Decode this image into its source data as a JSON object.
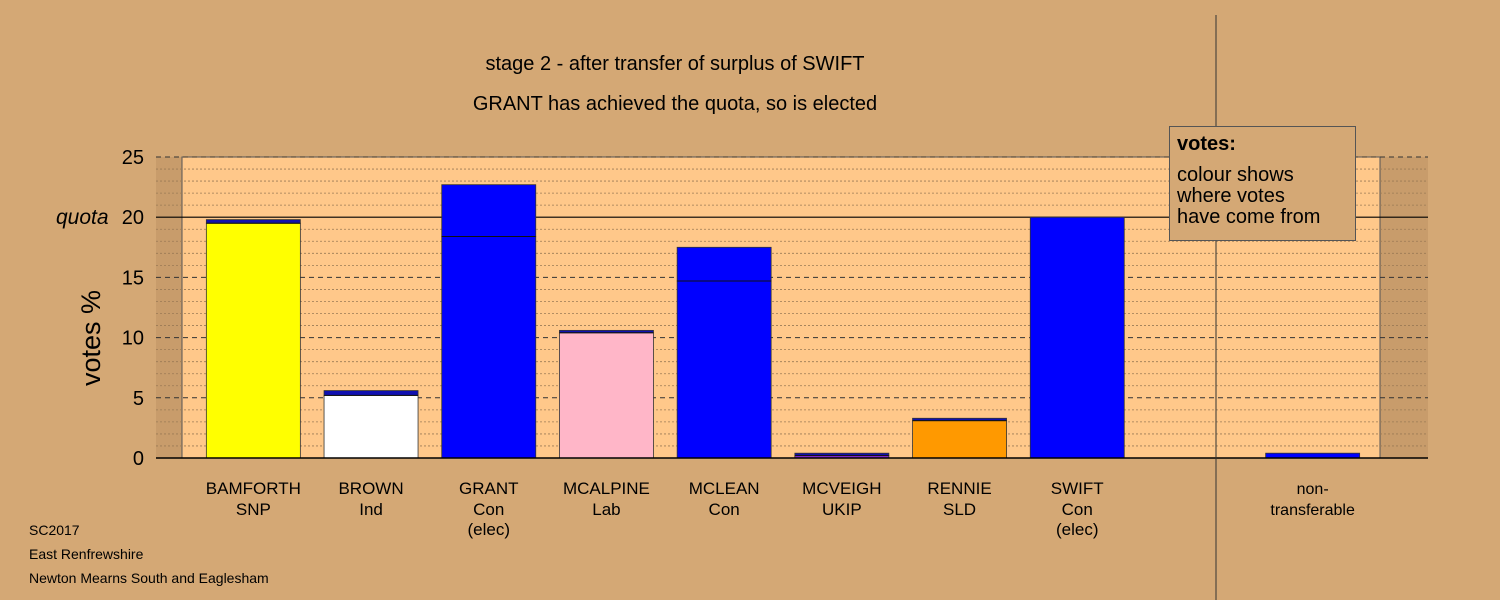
{
  "chart_data": {
    "type": "bar",
    "title": "stage 2 - after transfer of surplus of SWIFT",
    "subtitle": "GRANT has achieved the quota, so is elected",
    "ylabel": "votes %",
    "ylim": [
      0,
      25
    ],
    "yticks": [
      "0",
      "5",
      "10",
      "15",
      "20",
      "25"
    ],
    "quota": 20,
    "quota_label": "quota",
    "grid": true,
    "categories": [
      {
        "name": "BAMFORTH",
        "party": "SNP",
        "status": ""
      },
      {
        "name": "BROWN",
        "party": "Ind",
        "status": ""
      },
      {
        "name": "GRANT",
        "party": "Con",
        "status": "(elec)"
      },
      {
        "name": "MCALPINE",
        "party": "Lab",
        "status": ""
      },
      {
        "name": "MCLEAN",
        "party": "Con",
        "status": ""
      },
      {
        "name": "MCVEIGH",
        "party": "UKIP",
        "status": ""
      },
      {
        "name": "RENNIE",
        "party": "SLD",
        "status": ""
      },
      {
        "name": "SWIFT",
        "party": "Con",
        "status": "(elec)"
      },
      {
        "name": "",
        "party": "",
        "status": ""
      },
      {
        "name": "non-",
        "party": "transferable",
        "status": ""
      }
    ],
    "series": [
      {
        "values": [
          19.5,
          5.2,
          18.4,
          10.4,
          14.7,
          0.2,
          3.1,
          20.0,
          0,
          0.0
        ]
      },
      {
        "values": [
          0.3,
          0.4,
          4.3,
          0.2,
          2.8,
          0.2,
          0.2,
          0.0,
          0,
          0.4
        ]
      }
    ],
    "colors": [
      "#ffff00",
      "#ffffff",
      "#0000ff",
      "#ffb6c8",
      "#0000ff",
      "#8b2be2",
      "#ff9900",
      "#0000ff",
      "#0000ff",
      "#0000ff"
    ],
    "transfer_color": "#1010b0",
    "plot_bg": "#ffc88a",
    "legend": {
      "title": "votes:",
      "lines": [
        "colour shows",
        "where votes",
        "have come from"
      ],
      "placement": "top-right"
    }
  },
  "footer": {
    "line1": "SC2017",
    "line2": "East Renfrewshire",
    "line3": "Newton Mearns South and Eaglesham"
  }
}
